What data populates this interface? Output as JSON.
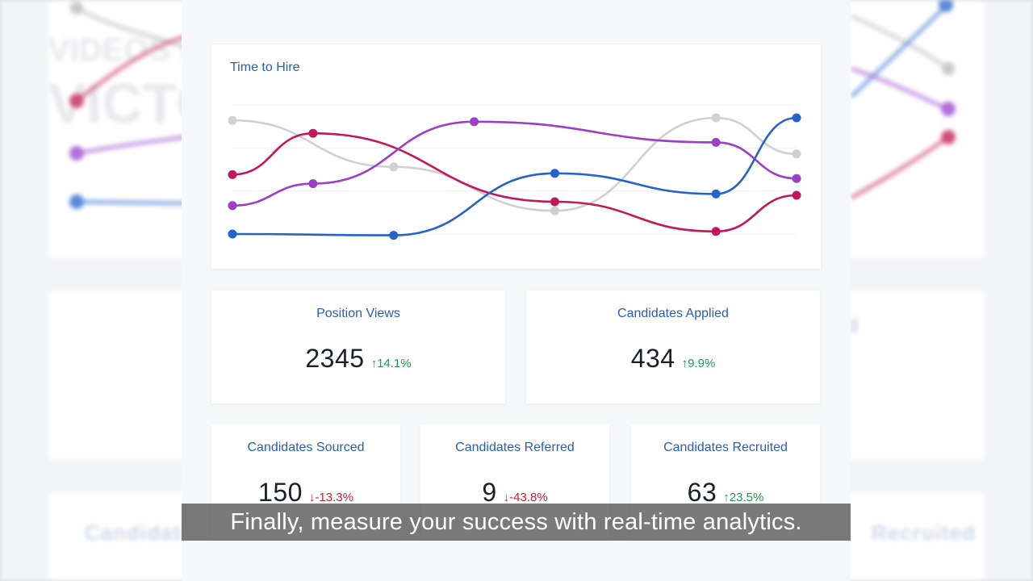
{
  "background": {
    "left_title_1": "VIDEOS MADE WITH",
    "left_title_2": "VICTORY AI",
    "left_label_1": "Candidates",
    "right_label_1": "Recruited",
    "right_label_2": "d"
  },
  "chart": {
    "title": "Time to Hire"
  },
  "chart_data": {
    "type": "line",
    "x": [
      0,
      1,
      2,
      3,
      4,
      5,
      6,
      7
    ],
    "series": [
      {
        "color": "#d0d0d0",
        "points": [
          [
            0,
            88
          ],
          [
            2,
            52
          ],
          [
            4,
            18
          ],
          [
            6,
            90
          ],
          [
            7,
            62
          ]
        ]
      },
      {
        "color": "#c2185b",
        "points": [
          [
            0,
            46
          ],
          [
            1,
            78
          ],
          [
            4,
            25
          ],
          [
            6,
            2
          ],
          [
            7,
            30
          ]
        ]
      },
      {
        "color": "#9b3fc5",
        "points": [
          [
            0,
            22
          ],
          [
            1,
            39
          ],
          [
            3,
            87
          ],
          [
            6,
            71
          ],
          [
            7,
            43
          ]
        ]
      },
      {
        "color": "#2563c7",
        "points": [
          [
            0,
            0
          ],
          [
            2,
            -1
          ],
          [
            4,
            47
          ],
          [
            6,
            31
          ],
          [
            7,
            90
          ]
        ]
      }
    ],
    "grid": true
  },
  "stats": {
    "position_views": {
      "label": "Position Views",
      "value": "2345",
      "delta": "14.1%",
      "dir": "up"
    },
    "candidates_applied": {
      "label": "Candidates Applied",
      "value": "434",
      "delta": "9.9%",
      "dir": "up"
    },
    "candidates_sourced": {
      "label": "Candidates Sourced",
      "value": "150",
      "delta": "-13.3%",
      "dir": "down"
    },
    "candidates_referred": {
      "label": "Candidates Referred",
      "value": "9",
      "delta": "-43.8%",
      "dir": "down"
    },
    "candidates_recruited": {
      "label": "Candidates Recruited",
      "value": "63",
      "delta": "23.5%",
      "dir": "up"
    }
  },
  "icons": {
    "up": "↑",
    "down": "↓"
  },
  "caption": "Finally, measure your success with real-time analytics."
}
